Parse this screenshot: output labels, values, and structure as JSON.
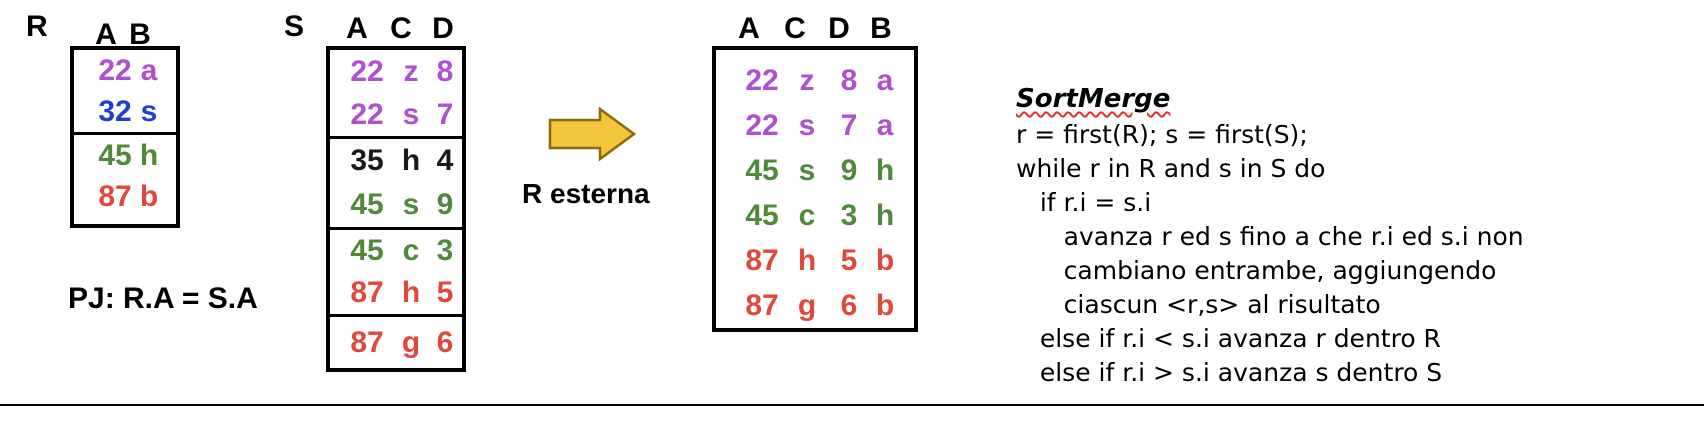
{
  "relation_r": {
    "label": "R",
    "columns": [
      "A",
      "B"
    ],
    "rows": [
      {
        "cells": [
          "22",
          "a"
        ],
        "color": "#b04fd0"
      },
      {
        "cells": [
          "32",
          "s"
        ],
        "color": "#1f3fcf"
      },
      {
        "cells": [
          "45",
          "h"
        ],
        "color": "#4f8a3a"
      },
      {
        "cells": [
          "87",
          "b"
        ],
        "color": "#e0493a"
      }
    ]
  },
  "relation_s": {
    "label": "S",
    "columns": [
      "A",
      "C",
      "D"
    ],
    "rows": [
      {
        "cells": [
          "22",
          "z",
          "8"
        ],
        "color": "#b04fd0"
      },
      {
        "cells": [
          "22",
          "s",
          "7"
        ],
        "color": "#b04fd0"
      },
      {
        "cells": [
          "35",
          "h",
          "4"
        ],
        "color": "#1a1a1a"
      },
      {
        "cells": [
          "45",
          "s",
          "9"
        ],
        "color": "#4f8a3a"
      },
      {
        "cells": [
          "45",
          "c",
          "3"
        ],
        "color": "#4f8a3a"
      },
      {
        "cells": [
          "87",
          "h",
          "5"
        ],
        "color": "#e0493a"
      },
      {
        "cells": [
          "87",
          "g",
          "6"
        ],
        "color": "#e0493a"
      }
    ]
  },
  "join_condition": "PJ: R.A = S.A",
  "arrow_label": "R esterna",
  "result": {
    "columns": [
      "A",
      "C",
      "D",
      "B"
    ],
    "rows": [
      {
        "cells": [
          "22",
          "z",
          "8",
          "a"
        ],
        "color": "#b04fd0"
      },
      {
        "cells": [
          "22",
          "s",
          "7",
          "a"
        ],
        "color": "#b04fd0"
      },
      {
        "cells": [
          "45",
          "s",
          "9",
          "h"
        ],
        "color": "#4f8a3a"
      },
      {
        "cells": [
          "45",
          "c",
          "3",
          "h"
        ],
        "color": "#4f8a3a"
      },
      {
        "cells": [
          "87",
          "h",
          "5",
          "b"
        ],
        "color": "#e0493a"
      },
      {
        "cells": [
          "87",
          "g",
          "6",
          "b"
        ],
        "color": "#e0493a"
      }
    ]
  },
  "algorithm": {
    "title": "SortMerge",
    "lines": [
      "r = first(R); s = first(S);",
      "while r in R and s in S do",
      "   if r.i = s.i",
      "      avanza r ed s fino a che r.i ed s.i non",
      "      cambiano entrambe, aggiungendo",
      "      ciascun <r,s> al risultato",
      "   else if r.i < s.i avanza r dentro R",
      "   else if r.i > s.i avanza s dentro S"
    ]
  },
  "colors": {
    "purple": "#b04fd0",
    "blue": "#1f3fcf",
    "green": "#4f8a3a",
    "red": "#e0493a",
    "black": "#1a1a1a",
    "arrow_fill": "#f2c63a",
    "arrow_stroke": "#8a6a10"
  }
}
